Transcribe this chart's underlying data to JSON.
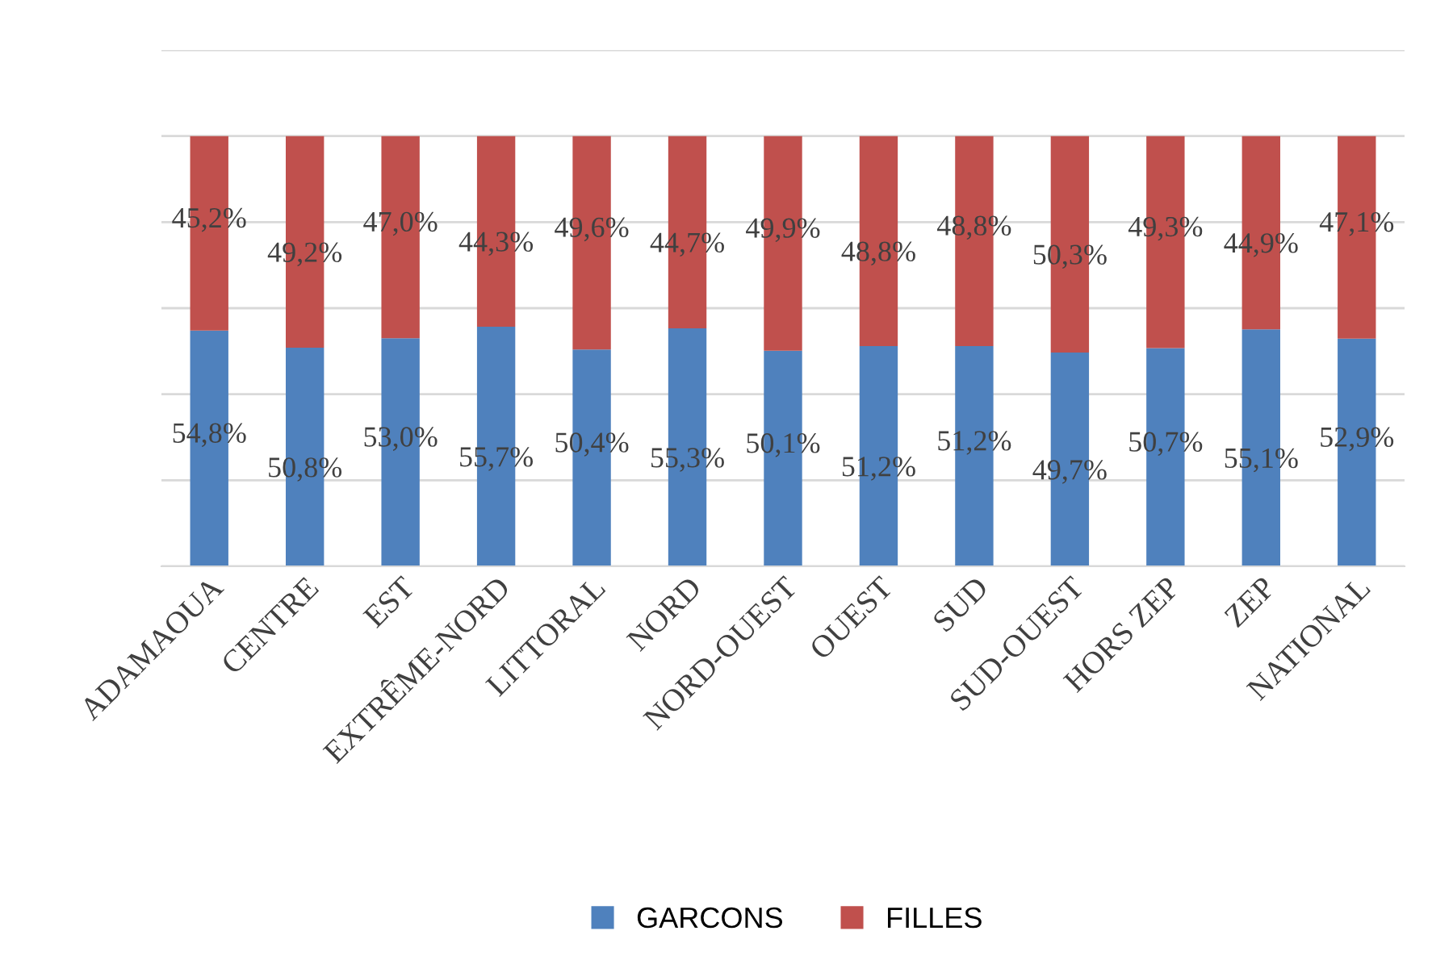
{
  "chart_data": {
    "type": "bar",
    "stacked": true,
    "categories": [
      "ADAMAOUA",
      "CENTRE",
      "EST",
      "EXTRÊME-NORD",
      "LITTORAL",
      "NORD",
      "NORD-OUEST",
      "OUEST",
      "SUD",
      "SUD-OUEST",
      "HORS ZEP",
      "ZEP",
      "NATIONAL"
    ],
    "series": [
      {
        "name": "GARCONS",
        "color": "#4f81bd",
        "values": [
          54.8,
          50.8,
          53.0,
          55.7,
          50.4,
          55.3,
          50.1,
          51.2,
          51.2,
          49.7,
          50.7,
          55.1,
          52.9
        ],
        "value_labels": [
          "54,8%",
          "50,8%",
          "53,0%",
          "55,7%",
          "50,4%",
          "55,3%",
          "50,1%",
          "51,2%",
          "51,2%",
          "49,7%",
          "50,7%",
          "55,1%",
          "52,9%"
        ]
      },
      {
        "name": "FILLES",
        "color": "#c0504d",
        "values": [
          45.2,
          49.2,
          47.0,
          44.3,
          49.6,
          44.7,
          49.9,
          48.8,
          48.8,
          50.3,
          49.3,
          44.9,
          47.1
        ],
        "value_labels": [
          "45,2%",
          "49,2%",
          "47,0%",
          "44,3%",
          "49,6%",
          "44,7%",
          "49,9%",
          "48,8%",
          "48,8%",
          "50,3%",
          "49,3%",
          "44,9%",
          "47,1%"
        ]
      }
    ],
    "ylim": [
      0,
      120
    ],
    "yticks": [
      {
        "value": 0,
        "label": null
      },
      {
        "value": 20,
        "label": null
      },
      {
        "value": 40,
        "label": null
      },
      {
        "value": 60,
        "label": null
      },
      {
        "value": 80,
        "label": null
      },
      {
        "value": 100,
        "label": null
      },
      {
        "value": 120,
        "label": null
      }
    ],
    "tick_labels": "x",
    "grid": "y",
    "legend": "bottom"
  }
}
